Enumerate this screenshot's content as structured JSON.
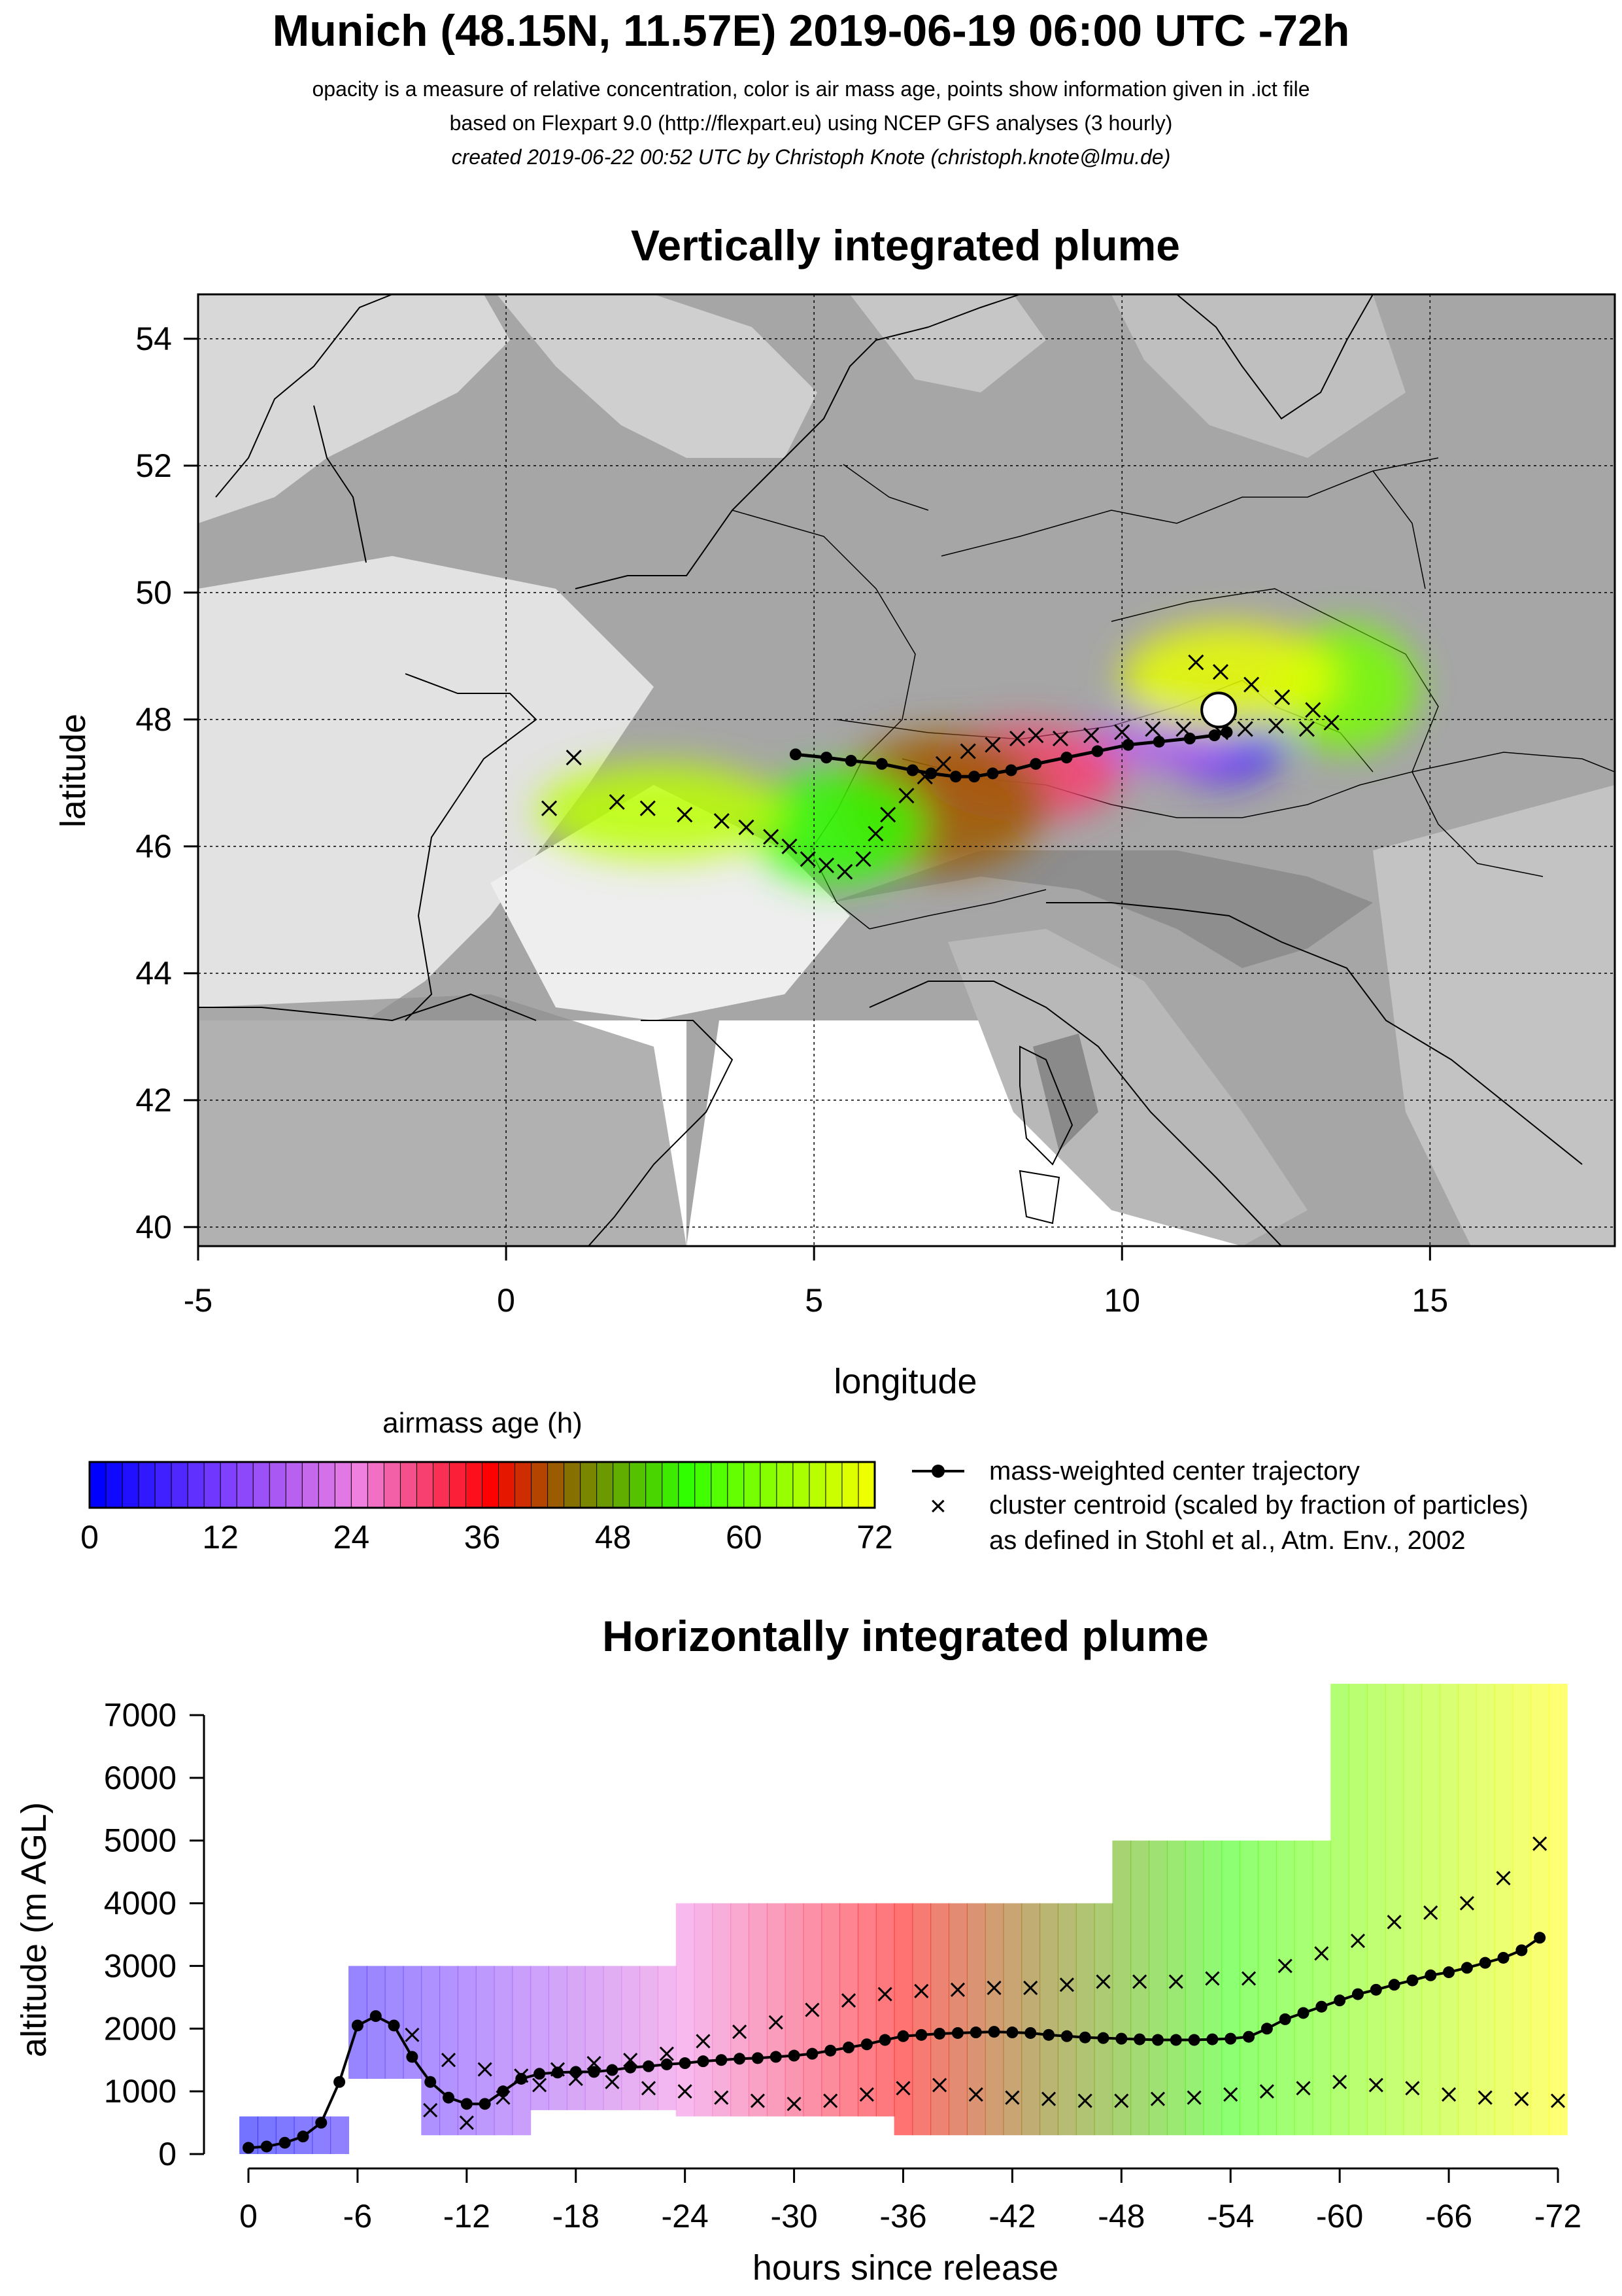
{
  "header": {
    "title": "Munich (48.15N, 11.57E) 2019-06-19 06:00 UTC -72h",
    "line1": "opacity is a measure of relative concentration, color is air mass age, points show information given in .ict file",
    "line2": "based on Flexpart 9.0 (http://flexpart.eu) using NCEP GFS analyses (3 hourly)",
    "line3": "created 2019-06-22 00:52 UTC by Christoph Knote (christoph.knote@lmu.de)"
  },
  "colors": {
    "age_min": "#0000ff",
    "age_mid1": "#ff00ff",
    "age_mid2": "#ff0000",
    "age_mid3": "#00ff00",
    "age_max": "#ffff00",
    "map_grey": "#9a9a9a"
  },
  "legend": {
    "colorbar_title": "airmass age (h)",
    "colorbar_ticks": [
      "0",
      "12",
      "24",
      "36",
      "48",
      "60",
      "72"
    ],
    "line_label": "mass-weighted center trajectory",
    "cross_label": "cluster centroid (scaled by fraction of particles)",
    "cross_label2": "as defined in Stohl et al., Atm. Env., 2002"
  },
  "chart_data": [
    {
      "type": "scatter",
      "title": "Vertically integrated plume",
      "xlabel": "longitude",
      "ylabel": "latitude",
      "xlim": [
        -5,
        18
      ],
      "ylim": [
        39.7,
        54.7
      ],
      "xticks": [
        -5,
        0,
        5,
        10,
        15
      ],
      "yticks": [
        40,
        42,
        44,
        46,
        48,
        50,
        52,
        54
      ],
      "grid": true,
      "release_point": {
        "lon": 11.57,
        "lat": 48.15
      },
      "center_trajectory": {
        "name": "mass-weighted center trajectory",
        "lon": [
          11.57,
          11.7,
          11.5,
          11.1,
          10.6,
          10.1,
          9.6,
          9.1,
          8.6,
          8.2,
          7.9,
          7.6,
          7.3,
          6.9,
          6.6,
          6.1,
          5.6,
          5.2,
          4.7
        ],
        "lat": [
          48.15,
          47.8,
          47.75,
          47.7,
          47.65,
          47.6,
          47.5,
          47.4,
          47.3,
          47.2,
          47.15,
          47.1,
          47.1,
          47.15,
          47.2,
          47.3,
          47.35,
          47.4,
          47.45
        ]
      },
      "cluster_centroids": {
        "name": "cluster centroid (scaled by fraction of particles)",
        "lon": [
          0.7,
          1.1,
          1.8,
          2.3,
          2.9,
          3.5,
          3.9,
          4.3,
          4.6,
          4.9,
          5.2,
          5.5,
          5.8,
          6.0,
          6.2,
          6.5,
          6.8,
          7.1,
          7.5,
          7.9,
          8.3,
          8.6,
          9.0,
          9.5,
          10.0,
          10.5,
          11.0,
          11.6,
          12.0,
          12.5,
          13.0,
          13.4,
          13.1,
          12.6,
          12.1,
          11.6,
          11.2
        ],
        "lat": [
          46.6,
          47.4,
          46.7,
          46.6,
          46.5,
          46.4,
          46.3,
          46.15,
          46.0,
          45.8,
          45.7,
          45.6,
          45.8,
          46.2,
          46.5,
          46.8,
          47.1,
          47.3,
          47.5,
          47.6,
          47.7,
          47.75,
          47.7,
          47.75,
          47.8,
          47.85,
          47.85,
          47.8,
          47.85,
          47.9,
          47.85,
          47.95,
          48.15,
          48.35,
          48.55,
          48.75,
          48.9
        ]
      },
      "plume_segments": [
        {
          "age_h": 6,
          "lon": [
            10.6,
            12.6
          ],
          "lat": [
            47.0,
            48.2
          ]
        },
        {
          "age_h": 18,
          "lon": [
            9.3,
            11.9
          ],
          "lat": [
            47.2,
            48.0
          ]
        },
        {
          "age_h": 30,
          "lon": [
            6.8,
            10.0
          ],
          "lat": [
            46.4,
            47.9
          ]
        },
        {
          "age_h": 42,
          "lon": [
            5.4,
            8.8
          ],
          "lat": [
            45.6,
            47.8
          ]
        },
        {
          "age_h": 54,
          "lon": [
            4.0,
            6.8
          ],
          "lat": [
            45.4,
            47.2
          ]
        },
        {
          "age_h": 66,
          "lon": [
            0.5,
            4.5
          ],
          "lat": [
            45.8,
            47.3
          ]
        },
        {
          "age_h": 60,
          "lon": [
            12.5,
            14.8
          ],
          "lat": [
            47.5,
            49.5
          ]
        },
        {
          "age_h": 70,
          "lon": [
            10.0,
            13.5
          ],
          "lat": [
            47.8,
            49.5
          ]
        }
      ]
    },
    {
      "type": "line",
      "title": "Horizontally integrated plume",
      "xlabel": "hours since release",
      "ylabel": "altitude (m AGL)",
      "xlim": [
        0,
        -72
      ],
      "ylim": [
        0,
        7200
      ],
      "xticks": [
        "0",
        "-6",
        "-12",
        "-18",
        "-24",
        "-30",
        "-36",
        "-42",
        "-48",
        "-54",
        "-60",
        "-66",
        "-72"
      ],
      "yticks": [
        "0",
        "1000",
        "2000",
        "3000",
        "4000",
        "5000",
        "6000",
        "7000"
      ],
      "center_trajectory": {
        "name": "mass-weighted center trajectory",
        "x": [
          0,
          -1,
          -2,
          -3,
          -4,
          -5,
          -6,
          -7,
          -8,
          -9,
          -10,
          -11,
          -12,
          -13,
          -14,
          -15,
          -16,
          -17,
          -18,
          -19,
          -20,
          -21,
          -22,
          -23,
          -24,
          -25,
          -26,
          -27,
          -28,
          -29,
          -30,
          -31,
          -32,
          -33,
          -34,
          -35,
          -36,
          -37,
          -38,
          -39,
          -40,
          -41,
          -42,
          -43,
          -44,
          -45,
          -46,
          -47,
          -48,
          -49,
          -50,
          -51,
          -52,
          -53,
          -54,
          -55,
          -56,
          -57,
          -58,
          -59,
          -60,
          -61,
          -62,
          -63,
          -64,
          -65,
          -66,
          -67,
          -68,
          -69,
          -70,
          -71
        ],
        "y": [
          100,
          120,
          180,
          280,
          500,
          1150,
          2050,
          2200,
          2050,
          1550,
          1150,
          900,
          800,
          800,
          1000,
          1200,
          1280,
          1300,
          1310,
          1310,
          1340,
          1380,
          1400,
          1430,
          1450,
          1480,
          1500,
          1520,
          1530,
          1550,
          1570,
          1600,
          1650,
          1700,
          1750,
          1820,
          1880,
          1900,
          1920,
          1930,
          1940,
          1950,
          1940,
          1930,
          1900,
          1880,
          1860,
          1850,
          1840,
          1830,
          1820,
          1820,
          1820,
          1830,
          1840,
          1870,
          2000,
          2150,
          2250,
          2350,
          2450,
          2550,
          2620,
          2700,
          2770,
          2850,
          2900,
          2970,
          3050,
          3130,
          3250,
          3450
        ]
      },
      "cluster_centroids_upper": {
        "x": [
          -9,
          -11,
          -13,
          -15,
          -17,
          -19,
          -21,
          -23,
          -25,
          -27,
          -29,
          -31,
          -33,
          -35,
          -37,
          -39,
          -41,
          -43,
          -45,
          -47,
          -49,
          -51,
          -53,
          -55,
          -57,
          -59,
          -61,
          -63,
          -65,
          -67,
          -69,
          -71
        ],
        "y": [
          1900,
          1500,
          1350,
          1250,
          1350,
          1450,
          1500,
          1600,
          1800,
          1950,
          2100,
          2300,
          2450,
          2550,
          2600,
          2620,
          2650,
          2650,
          2700,
          2750,
          2750,
          2750,
          2800,
          2800,
          3000,
          3200,
          3400,
          3700,
          3850,
          4000,
          4400,
          4950
        ]
      },
      "cluster_centroids_lower": {
        "x": [
          -10,
          -12,
          -14,
          -16,
          -18,
          -20,
          -22,
          -24,
          -26,
          -28,
          -30,
          -32,
          -34,
          -36,
          -38,
          -40,
          -42,
          -44,
          -46,
          -48,
          -50,
          -52,
          -54,
          -56,
          -58,
          -60,
          -62,
          -64,
          -66,
          -68,
          -70,
          -72
        ],
        "y": [
          700,
          500,
          900,
          1100,
          1200,
          1150,
          1050,
          1000,
          900,
          850,
          800,
          850,
          950,
          1050,
          1100,
          950,
          900,
          880,
          850,
          850,
          880,
          900,
          950,
          1000,
          1050,
          1150,
          1100,
          1050,
          950,
          900,
          880,
          850
        ]
      },
      "plume_segments": [
        {
          "age_h": 0,
          "x": [
            0,
            -5
          ],
          "y": [
            0,
            600
          ]
        },
        {
          "age_h": 6,
          "x": [
            -6,
            -9
          ],
          "y": [
            1200,
            3000
          ]
        },
        {
          "age_h": 12,
          "x": [
            -10,
            -15
          ],
          "y": [
            300,
            3000
          ]
        },
        {
          "age_h": 20,
          "x": [
            -16,
            -23
          ],
          "y": [
            700,
            3000
          ]
        },
        {
          "age_h": 30,
          "x": [
            -24,
            -35
          ],
          "y": [
            600,
            4000
          ]
        },
        {
          "age_h": 42,
          "x": [
            -36,
            -47
          ],
          "y": [
            300,
            4000
          ]
        },
        {
          "age_h": 54,
          "x": [
            -48,
            -59
          ],
          "y": [
            300,
            5000
          ]
        },
        {
          "age_h": 66,
          "x": [
            -60,
            -72
          ],
          "y": [
            300,
            7500
          ]
        }
      ]
    }
  ]
}
